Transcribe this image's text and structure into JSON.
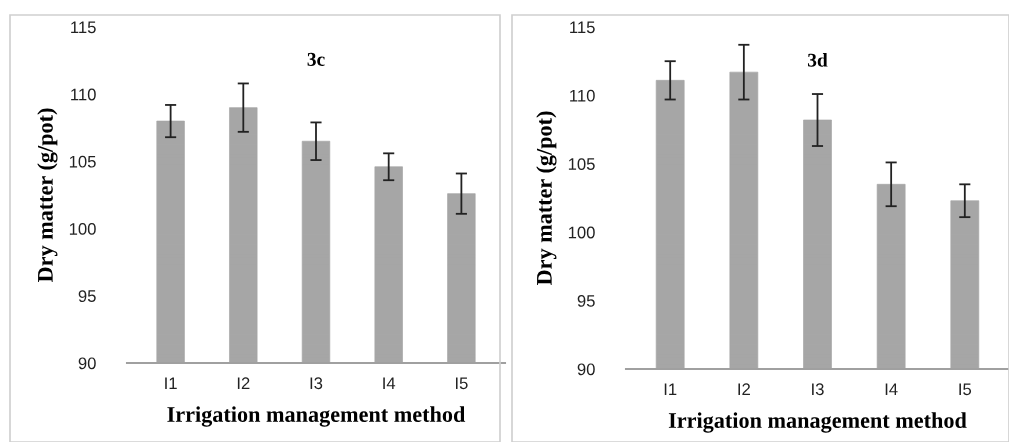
{
  "chart_data": [
    {
      "type": "bar",
      "title": "3c",
      "xlabel": "Irrigation management method",
      "ylabel": "Dry matter (g/pot)",
      "categories": [
        "I1",
        "I2",
        "I3",
        "I4",
        "I5"
      ],
      "values": [
        108.0,
        109.0,
        106.5,
        104.6,
        102.6
      ],
      "errors": [
        1.2,
        1.8,
        1.4,
        1.0,
        1.5
      ],
      "color": "#a6a6a6",
      "ylim": [
        90,
        115
      ],
      "yticks": [
        90,
        95,
        100,
        105,
        110,
        115
      ],
      "grid": false,
      "legend": false
    },
    {
      "type": "bar",
      "title": "3d",
      "xlabel": "Irrigation management method",
      "ylabel": "Dry matter (g/pot)",
      "categories": [
        "I1",
        "I2",
        "I3",
        "I4",
        "I5"
      ],
      "values": [
        111.1,
        111.7,
        108.2,
        103.5,
        102.3
      ],
      "errors": [
        1.4,
        2.0,
        1.9,
        1.6,
        1.2
      ],
      "color": "#a6a6a6",
      "ylim": [
        90,
        115
      ],
      "yticks": [
        90,
        95,
        100,
        105,
        110,
        115
      ],
      "grid": false,
      "legend": false
    }
  ]
}
